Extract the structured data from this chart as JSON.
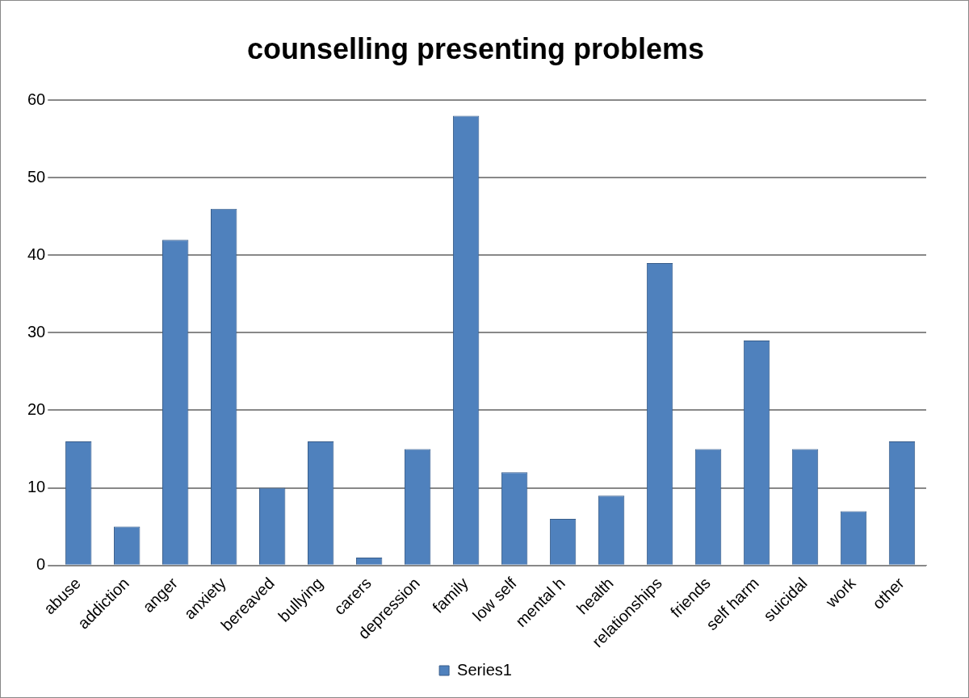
{
  "chart_data": {
    "type": "bar",
    "title": "counselling presenting problems",
    "categories": [
      "abuse",
      "addiction",
      "anger",
      "anxiety",
      "bereaved",
      "bullying",
      "carers",
      "depression",
      "family",
      "low self",
      "mental h",
      "health",
      "relationships",
      "friends",
      "self harm",
      "suicidal",
      "work",
      "other"
    ],
    "series": [
      {
        "name": "Series1",
        "color": "#4f81bd",
        "values": [
          16,
          5,
          42,
          46,
          10,
          16,
          1,
          15,
          58,
          12,
          6,
          9,
          39,
          15,
          29,
          15,
          7,
          16
        ]
      }
    ],
    "ylim": [
      0,
      60
    ],
    "yticks": [
      0,
      10,
      20,
      30,
      40,
      50,
      60
    ],
    "grid": "y",
    "legend": "bottom"
  }
}
